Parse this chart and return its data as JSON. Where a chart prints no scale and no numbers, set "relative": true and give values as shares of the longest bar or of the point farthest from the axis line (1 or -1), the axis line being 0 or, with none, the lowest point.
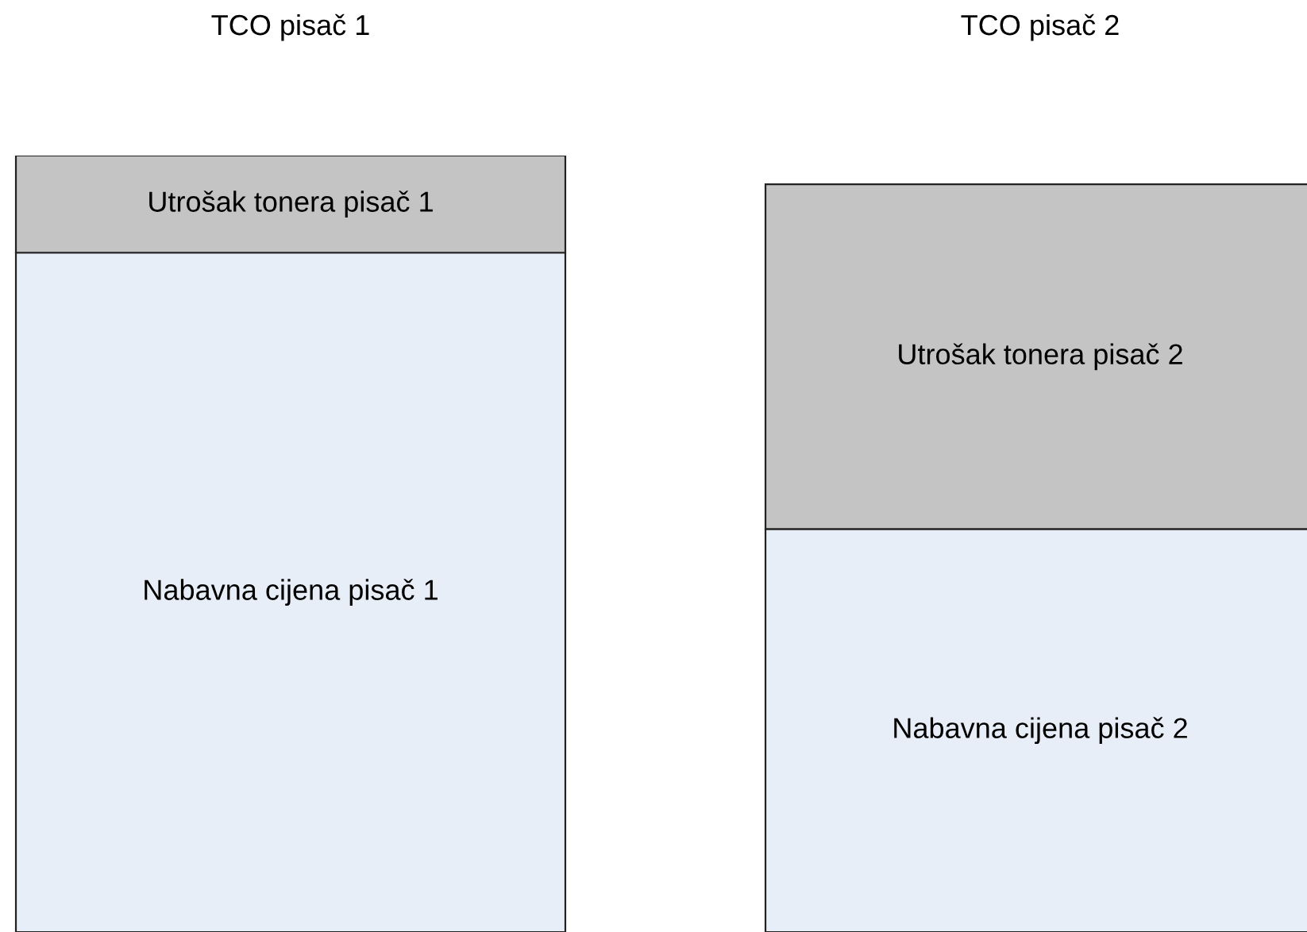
{
  "chart_data": {
    "type": "bar",
    "relative": true,
    "stacked": true,
    "categories": [
      "TCO pisač 1",
      "TCO pisač 2"
    ],
    "series": [
      {
        "color": "#e8eef8",
        "values": [
          0.875,
          0.519
        ]
      },
      {
        "color": "#c4c4c4",
        "values": [
          0.125,
          0.444
        ]
      }
    ],
    "annotations": [
      "Nabavna cijena pisač 1",
      "Nabavna cijena pisač 2",
      "Utrošak tonera pisač 1",
      "Utrošak tonera pisač 2"
    ]
  }
}
